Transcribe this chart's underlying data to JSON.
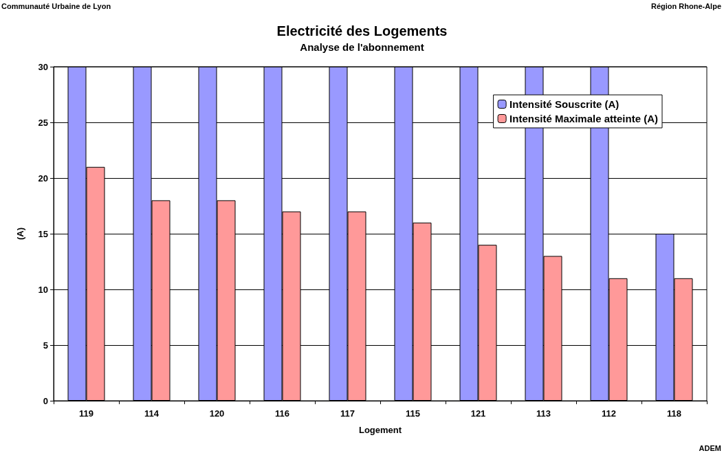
{
  "chart_data": {
    "type": "bar",
    "title": "Electricité des Logements",
    "subtitle": "Analyse de l'abonnement",
    "xlabel": "Logement",
    "ylabel": "(A)",
    "categories": [
      "119",
      "114",
      "120",
      "116",
      "117",
      "115",
      "121",
      "113",
      "112",
      "118"
    ],
    "series": [
      {
        "name": "Intensité Souscrite (A)",
        "color": "#9999ff",
        "values": [
          30,
          30,
          30,
          30,
          30,
          30,
          30,
          30,
          30,
          15
        ]
      },
      {
        "name": "Intensité Maximale atteinte (A)",
        "color": "#ff9999",
        "values": [
          21,
          18,
          18,
          17,
          17,
          16,
          14,
          13,
          11,
          11
        ]
      }
    ],
    "ylim": [
      0,
      30
    ],
    "yticks": [
      0,
      5,
      10,
      15,
      20,
      25,
      30
    ],
    "grid": "y",
    "legend": "top right",
    "annotations": [
      "Communauté Urbaine de Lyon",
      "Région Rhone-Alpe",
      "ADEM"
    ]
  }
}
